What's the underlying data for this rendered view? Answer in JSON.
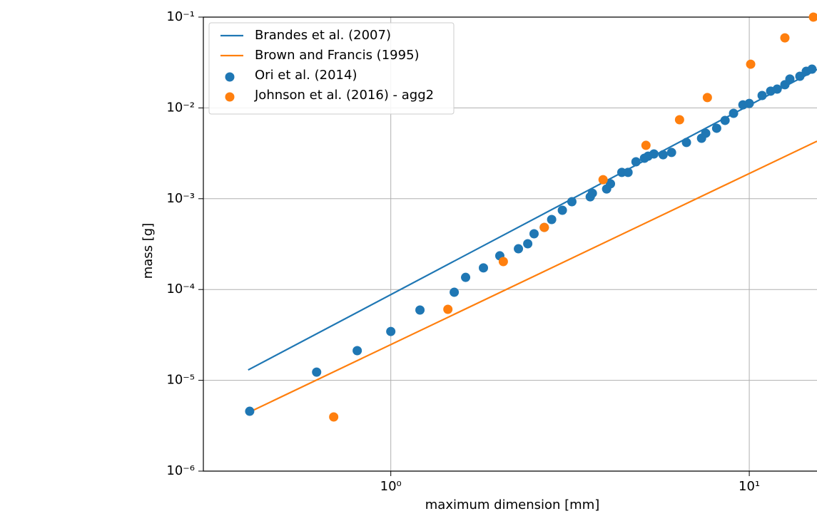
{
  "chart_data": {
    "type": "line",
    "xlabel": "maximum dimension  [mm]",
    "ylabel": "mass   [g]",
    "xscale": "log",
    "yscale": "log",
    "grid": true,
    "legend": "upper left",
    "xlim": [
      0.3,
      15.45
    ],
    "ylim": [
      1e-06,
      0.1
    ],
    "xticks": [
      {
        "value": 1,
        "label": "10⁰"
      },
      {
        "value": 10,
        "label": "10¹"
      }
    ],
    "yticks": [
      {
        "value": 1e-06,
        "label": "10⁻⁶"
      },
      {
        "value": 1e-05,
        "label": "10⁻⁵"
      },
      {
        "value": 0.0001,
        "label": "10⁻⁴"
      },
      {
        "value": 0.001,
        "label": "10⁻³"
      },
      {
        "value": 0.01,
        "label": "10⁻²"
      },
      {
        "value": 0.1,
        "label": "10⁻¹"
      }
    ],
    "series": [
      {
        "name": "Brandes et al. (2007)",
        "type": "line",
        "color": "#1f77b4",
        "x": [
          0.4,
          15.45
        ],
        "values": [
          1.3e-05,
          0.0265
        ]
      },
      {
        "name": "Brown and Francis (1995)",
        "type": "line",
        "color": "#ff7f0e",
        "x": [
          0.4,
          15.45
        ],
        "values": [
          4.4e-06,
          0.0043
        ]
      },
      {
        "name": "Ori et al. (2014)",
        "type": "scatter",
        "color": "#1f77b4",
        "x": [
          0.404,
          0.621,
          0.806,
          1.0,
          1.206,
          1.503,
          1.617,
          1.813,
          2.014,
          2.27,
          2.41,
          2.51,
          2.68,
          2.81,
          3.01,
          3.2,
          3.6,
          3.65,
          4.0,
          4.1,
          4.41,
          4.59,
          4.83,
          5.1,
          5.22,
          5.42,
          5.75,
          6.07,
          6.68,
          7.36,
          7.56,
          8.11,
          8.56,
          9.04,
          9.6,
          10.0,
          10.86,
          11.47,
          11.96,
          12.57,
          12.98,
          13.84,
          14.42,
          14.96
        ],
        "values": [
          4.56e-06,
          1.23e-05,
          2.12e-05,
          3.45e-05,
          5.94e-05,
          9.33e-05,
          0.000136,
          0.000173,
          0.000235,
          0.000281,
          0.000319,
          0.000411,
          0.000483,
          0.00059,
          0.000746,
          0.000927,
          0.00105,
          0.00115,
          0.00128,
          0.00146,
          0.00195,
          0.00195,
          0.00255,
          0.00279,
          0.00294,
          0.00311,
          0.00305,
          0.00323,
          0.00416,
          0.00463,
          0.00526,
          0.00597,
          0.00728,
          0.00872,
          0.0108,
          0.0112,
          0.0137,
          0.0153,
          0.0161,
          0.018,
          0.0208,
          0.0223,
          0.0253,
          0.0267
        ]
      },
      {
        "name": "Johnson et al. (2016) - agg2",
        "type": "scatter",
        "color": "#ff7f0e",
        "x": [
          0.693,
          1.443,
          2.06,
          2.68,
          3.91,
          5.15,
          6.39,
          7.64,
          10.09,
          12.57,
          15.1
        ],
        "values": [
          3.95e-06,
          6.05e-05,
          0.000203,
          0.000483,
          0.00162,
          0.00387,
          0.00741,
          0.013,
          0.0303,
          0.0591,
          0.1
        ]
      }
    ]
  }
}
